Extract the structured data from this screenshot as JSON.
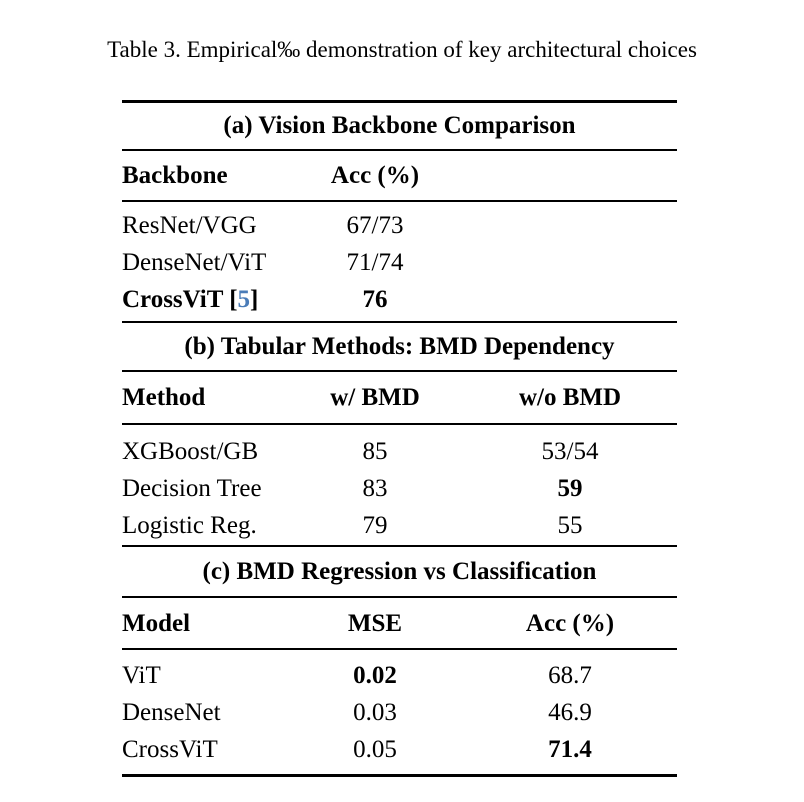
{
  "page": {
    "caption": "Table 3. Empirical‰ demonstration of key architectural choices"
  },
  "colors": {
    "text": "#000000",
    "rule": "#000000",
    "citation": "#4a7cb8"
  },
  "table_a": {
    "title": "(a) Vision Backbone Comparison",
    "headers": {
      "col1": "Backbone",
      "col2": "Acc (%)"
    },
    "rows": [
      {
        "name": "ResNet/VGG",
        "acc": "67/73"
      },
      {
        "name": "DenseNet/ViT",
        "acc": "71/74"
      }
    ],
    "highlight_row": {
      "name_pre": "CrossViT [",
      "citation": "5",
      "name_post": "]",
      "acc": "76"
    }
  },
  "table_b": {
    "title": "(b) Tabular Methods: BMD Dependency",
    "headers": {
      "col1": "Method",
      "col2": "w/ BMD",
      "col3": "w/o BMD"
    },
    "rows": [
      {
        "method": "XGBoost/GB",
        "with_bmd": "85",
        "without_bmd": "53/54"
      },
      {
        "method": "Decision Tree",
        "with_bmd": "83",
        "without_bmd": "59"
      },
      {
        "method": "Logistic Reg.",
        "with_bmd": "79",
        "without_bmd": "55"
      }
    ]
  },
  "table_c": {
    "title": "(c) BMD Regression vs Classification",
    "headers": {
      "col1": "Model",
      "col2": "MSE",
      "col3": "Acc (%)"
    },
    "rows": [
      {
        "model": "ViT",
        "mse": "0.02",
        "acc": "68.7"
      },
      {
        "model": "DenseNet",
        "mse": "0.03",
        "acc": "46.9"
      },
      {
        "model": "CrossViT",
        "mse": "0.05",
        "acc": "71.4"
      }
    ]
  }
}
